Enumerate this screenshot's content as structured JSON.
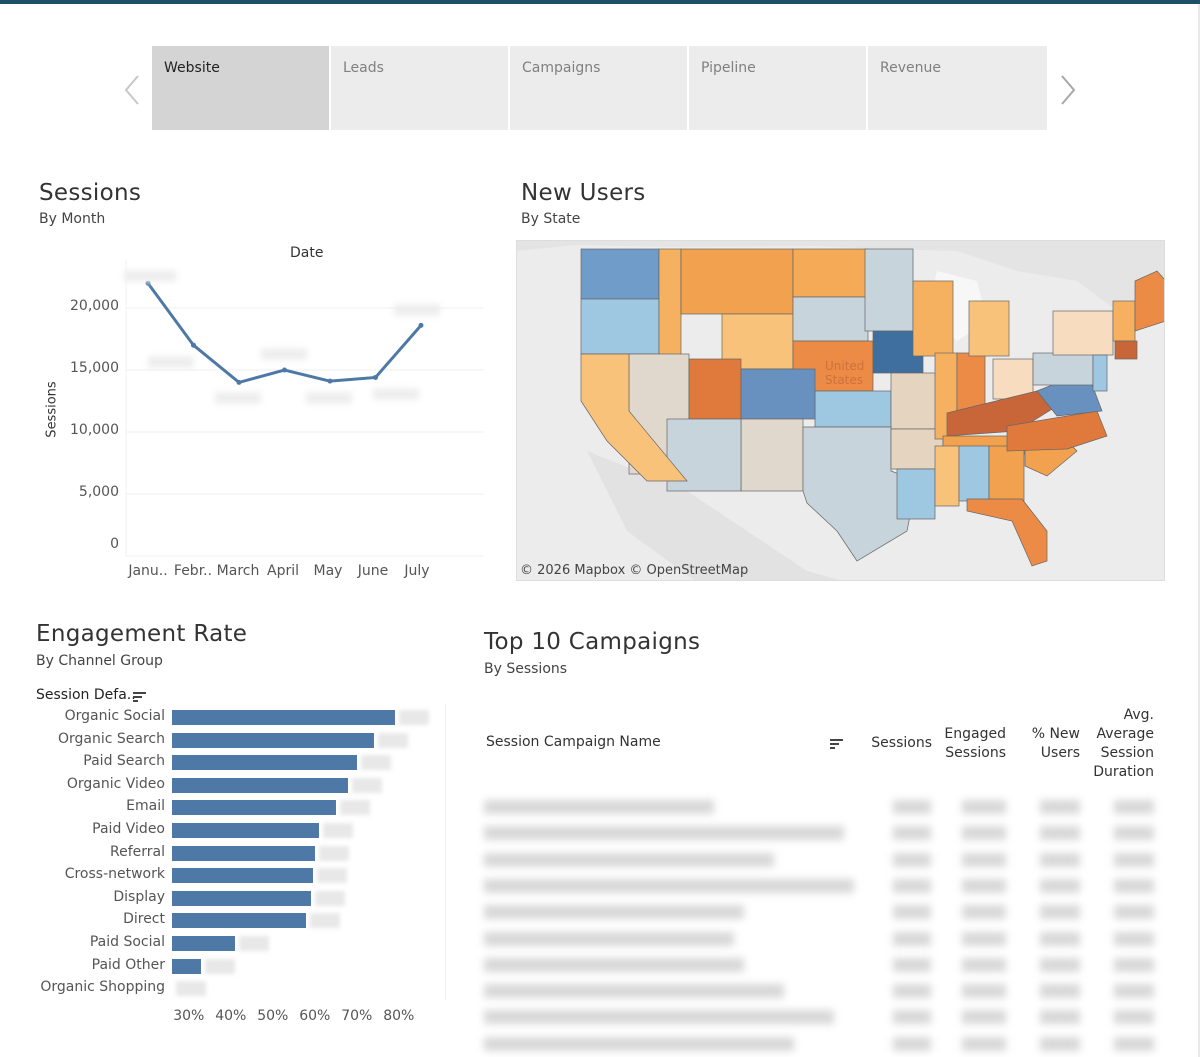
{
  "tabs": [
    {
      "label": "Website",
      "active": true
    },
    {
      "label": "Leads"
    },
    {
      "label": "Campaigns"
    },
    {
      "label": "Pipeline"
    },
    {
      "label": "Revenue"
    }
  ],
  "sessions": {
    "title": "Sessions",
    "subtitle": "By Month",
    "top_axis_label": "Date",
    "y_axis_label": "Sessions",
    "y_ticks": [
      "20,000",
      "15,000",
      "10,000",
      "5,000",
      "0"
    ],
    "x_ticks": [
      "Janu..",
      "Febr..",
      "March",
      "April",
      "May",
      "June",
      "July"
    ]
  },
  "new_users": {
    "title": "New Users",
    "subtitle": "By State",
    "map_label": "United States",
    "credit": "© 2026 Mapbox  © OpenStreetMap"
  },
  "engagement": {
    "title": "Engagement Rate",
    "subtitle": "By Channel Group",
    "dimension_header": "Session Defa..",
    "x_ticks": [
      "30%",
      "40%",
      "50%",
      "60%",
      "70%",
      "80%"
    ]
  },
  "campaigns": {
    "title": "Top 10 Campaigns",
    "subtitle": "By Sessions",
    "columns": {
      "name": "Session Campaign Name",
      "sessions": "Sessions",
      "engaged_1": "Engaged",
      "engaged_2": "Sessions",
      "new_1": "% New",
      "new_2": "Users",
      "avg_1": "Avg.",
      "avg_2": "Average",
      "avg_3": "Session",
      "avg_4": "Duration"
    }
  },
  "chart_data": [
    {
      "type": "line",
      "title": "Sessions",
      "subtitle": "By Month",
      "xlabel": "Date",
      "ylabel": "Sessions",
      "x": [
        "January",
        "February",
        "March",
        "April",
        "May",
        "June",
        "July"
      ],
      "series": [
        {
          "values": [
            22000,
            17000,
            14000,
            15000,
            14100,
            14400,
            18600
          ]
        }
      ],
      "ylim": [
        0,
        23000
      ],
      "grid": true,
      "color": "#4e79a7"
    },
    {
      "type": "bar",
      "orientation": "horizontal",
      "title": "Engagement Rate",
      "subtitle": "By Channel Group",
      "ylabel": "Session Defa..",
      "categories": [
        "Organic Social",
        "Organic Search",
        "Paid Search",
        "Organic Video",
        "Email",
        "Paid Video",
        "Referral",
        "Cross-network",
        "Display",
        "Direct",
        "Paid Social",
        "Paid Other",
        "Organic Shopping"
      ],
      "values": [
        79,
        74,
        70,
        68,
        65,
        61,
        60,
        59.5,
        59,
        58,
        41,
        33,
        26
      ],
      "xlim": [
        26,
        86
      ],
      "x_ticks": [
        30,
        40,
        50,
        60,
        70,
        80
      ],
      "color": "#4e79a7"
    }
  ]
}
